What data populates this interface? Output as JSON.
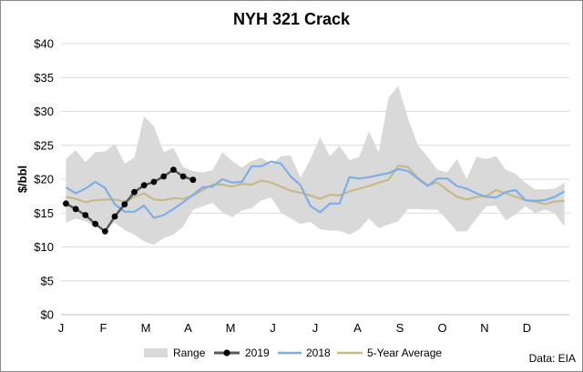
{
  "chart_data": {
    "type": "line",
    "title": "NYH 321 Crack",
    "ylabel": "$/bbl",
    "xlabel": "",
    "ylim": [
      0,
      40
    ],
    "yticks": [
      "$0",
      "$5",
      "$10",
      "$15",
      "$20",
      "$25",
      "$30",
      "$35",
      "$40"
    ],
    "x_months": [
      "J",
      "F",
      "M",
      "A",
      "M",
      "J",
      "J",
      "A",
      "S",
      "O",
      "N",
      "D"
    ],
    "weeks": [
      1,
      2,
      3,
      4,
      5,
      6,
      7,
      8,
      9,
      10,
      11,
      12,
      13,
      14,
      15,
      16,
      17,
      18,
      19,
      20,
      21,
      22,
      23,
      24,
      25,
      26,
      27,
      28,
      29,
      30,
      31,
      32,
      33,
      34,
      35,
      36,
      37,
      38,
      39,
      40,
      41,
      42,
      43,
      44,
      45,
      46,
      47,
      48,
      49,
      50,
      51,
      52
    ],
    "range": {
      "name": "Range",
      "high": [
        23.0,
        24.3,
        22.5,
        24.0,
        24.1,
        25.2,
        22.3,
        23.2,
        29.3,
        27.8,
        24.0,
        24.6,
        21.8,
        21.2,
        21.0,
        21.3,
        24.0,
        22.7,
        21.7,
        22.7,
        23.2,
        22.2,
        23.4,
        23.5,
        20.2,
        22.9,
        26.2,
        23.4,
        24.9,
        22.8,
        23.3,
        27.0,
        24.0,
        32.0,
        33.8,
        29.0,
        25.0,
        23.3,
        21.4,
        21.0,
        23.0,
        20.0,
        23.3,
        23.0,
        23.4,
        21.4,
        20.8,
        19.5,
        18.5,
        18.5,
        18.6,
        19.5
      ],
      "low": [
        13.6,
        14.2,
        13.8,
        13.0,
        12.8,
        13.6,
        12.5,
        11.8,
        10.8,
        10.3,
        11.3,
        11.8,
        13.0,
        15.5,
        16.0,
        16.5,
        15.1,
        14.4,
        15.4,
        15.7,
        16.9,
        17.3,
        15.1,
        14.2,
        13.4,
        13.7,
        12.6,
        12.4,
        12.4,
        11.8,
        12.6,
        14.2,
        12.8,
        13.3,
        13.8,
        15.6,
        15.6,
        15.5,
        15.5,
        14.0,
        12.3,
        12.3,
        14.2,
        16.0,
        16.1,
        13.9,
        14.8,
        16.0,
        15.0,
        15.5,
        15.0,
        13.0
      ]
    },
    "series": [
      {
        "name": "2019",
        "color": "#000000",
        "x": [
          1,
          2,
          3,
          4,
          5,
          6,
          7,
          8,
          9,
          10,
          11,
          12,
          13,
          14
        ],
        "values": [
          16.4,
          15.6,
          14.7,
          13.4,
          12.3,
          14.5,
          16.3,
          18.1,
          19.1,
          19.6,
          20.4,
          21.4,
          20.4,
          19.9
        ]
      },
      {
        "name": "2018",
        "color": "#7eaee6",
        "x": [
          1,
          2,
          3,
          4,
          5,
          6,
          7,
          8,
          9,
          10,
          11,
          12,
          13,
          14,
          15,
          16,
          17,
          18,
          19,
          20,
          21,
          22,
          23,
          24,
          25,
          26,
          27,
          28,
          29,
          30,
          31,
          32,
          33,
          34,
          35,
          36,
          37,
          38,
          39,
          40,
          41,
          42,
          43,
          44,
          45,
          46,
          47,
          48,
          49,
          50,
          51,
          52
        ],
        "values": [
          18.8,
          17.9,
          18.6,
          19.6,
          18.7,
          16.3,
          15.2,
          15.2,
          16.1,
          14.3,
          14.7,
          15.6,
          16.6,
          17.7,
          18.8,
          18.9,
          20.0,
          19.5,
          19.6,
          21.9,
          21.9,
          22.6,
          22.3,
          20.4,
          19.1,
          16.1,
          15.1,
          16.4,
          16.4,
          20.3,
          20.1,
          20.3,
          20.6,
          20.9,
          21.5,
          21.2,
          20.1,
          19.0,
          20.1,
          20.1,
          19.0,
          18.6,
          17.9,
          17.4,
          17.3,
          18.1,
          18.4,
          16.9,
          16.8,
          16.9,
          17.4,
          18.2
        ]
      },
      {
        "name": "5-Year Average",
        "color": "#c8b98a",
        "x": [
          1,
          2,
          3,
          4,
          5,
          6,
          7,
          8,
          9,
          10,
          11,
          12,
          13,
          14,
          15,
          16,
          17,
          18,
          19,
          20,
          21,
          22,
          23,
          24,
          25,
          26,
          27,
          28,
          29,
          30,
          31,
          32,
          33,
          34,
          35,
          36,
          37,
          38,
          39,
          40,
          41,
          42,
          43,
          44,
          45,
          46,
          47,
          48,
          49,
          50,
          51,
          52
        ],
        "values": [
          17.4,
          17.1,
          16.6,
          16.9,
          17.0,
          17.0,
          16.7,
          17.4,
          17.9,
          17.0,
          16.9,
          17.2,
          17.1,
          17.6,
          18.4,
          19.2,
          19.2,
          18.9,
          19.3,
          19.2,
          19.8,
          19.5,
          18.9,
          18.3,
          18.0,
          17.6,
          17.1,
          17.7,
          17.6,
          18.2,
          18.6,
          19.0,
          19.5,
          19.9,
          22.0,
          21.8,
          20.2,
          19.1,
          19.5,
          18.4,
          17.4,
          17.0,
          17.4,
          17.5,
          18.4,
          17.9,
          17.4,
          16.9,
          16.7,
          16.3,
          16.7,
          16.8
        ]
      }
    ],
    "legend": [
      "Range",
      "2019",
      "2018",
      "5-Year Average"
    ],
    "legend_position": "bottom",
    "source": "Data: EIA",
    "grid": true
  }
}
